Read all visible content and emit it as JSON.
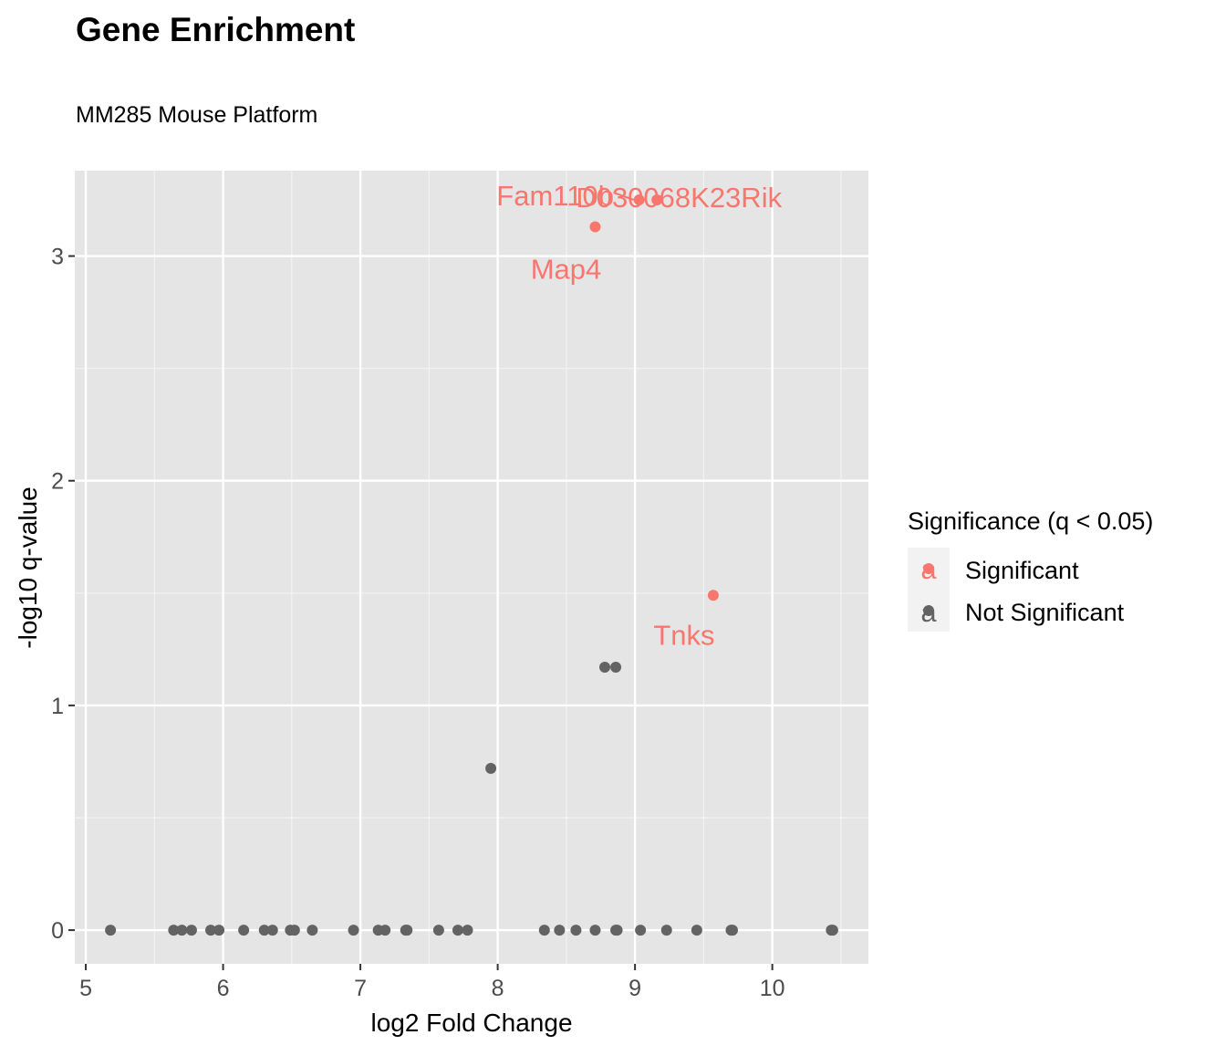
{
  "chart_data": {
    "type": "scatter",
    "title": "Gene Enrichment",
    "subtitle": "MM285 Mouse Platform",
    "xlabel": "log2 Fold Change",
    "ylabel": "-log10 q-value",
    "xlim": [
      4.92,
      10.7
    ],
    "ylim": [
      -0.15,
      3.38
    ],
    "xticks": [
      5,
      6,
      7,
      8,
      9,
      10
    ],
    "yticks": [
      0,
      1,
      2,
      3
    ],
    "grid": true,
    "legend": {
      "title": "Significance (q < 0.05)",
      "position": "right",
      "entries": [
        {
          "label": "Significant",
          "color": "#f8766d",
          "key_glyph": "a"
        },
        {
          "label": "Not Significant",
          "color": "#636363",
          "key_glyph": "a"
        }
      ]
    },
    "colors": {
      "panel_background": "#e5e5e5",
      "grid_major": "#ffffff",
      "grid_minor": "#f2f2f2",
      "significant": "#f8766d",
      "not_significant": "#636363"
    },
    "series": [
      {
        "name": "Significant",
        "points": [
          {
            "x": 9.03,
            "y": 3.25,
            "label": ""
          },
          {
            "x": 9.16,
            "y": 3.25,
            "label": "D030068K23Rik"
          },
          {
            "x": 8.71,
            "y": 3.13,
            "label": "Map4"
          },
          {
            "x": 9.57,
            "y": 1.49,
            "label": "Tnks"
          }
        ]
      },
      {
        "name": "Not Significant",
        "points": [
          {
            "x": 8.78,
            "y": 1.17
          },
          {
            "x": 8.86,
            "y": 1.17
          },
          {
            "x": 7.95,
            "y": 0.72
          },
          {
            "x": 5.18,
            "y": 0
          },
          {
            "x": 5.64,
            "y": 0
          },
          {
            "x": 5.7,
            "y": 0
          },
          {
            "x": 5.77,
            "y": 0
          },
          {
            "x": 5.91,
            "y": 0
          },
          {
            "x": 5.97,
            "y": 0
          },
          {
            "x": 6.15,
            "y": 0
          },
          {
            "x": 6.3,
            "y": 0
          },
          {
            "x": 6.36,
            "y": 0
          },
          {
            "x": 6.49,
            "y": 0
          },
          {
            "x": 6.52,
            "y": 0
          },
          {
            "x": 6.65,
            "y": 0
          },
          {
            "x": 6.95,
            "y": 0
          },
          {
            "x": 7.13,
            "y": 0
          },
          {
            "x": 7.18,
            "y": 0
          },
          {
            "x": 7.33,
            "y": 0
          },
          {
            "x": 7.34,
            "y": 0
          },
          {
            "x": 7.57,
            "y": 0
          },
          {
            "x": 7.71,
            "y": 0
          },
          {
            "x": 7.78,
            "y": 0
          },
          {
            "x": 8.34,
            "y": 0
          },
          {
            "x": 8.45,
            "y": 0
          },
          {
            "x": 8.57,
            "y": 0
          },
          {
            "x": 8.71,
            "y": 0
          },
          {
            "x": 8.86,
            "y": 0
          },
          {
            "x": 8.87,
            "y": 0
          },
          {
            "x": 9.04,
            "y": 0
          },
          {
            "x": 9.23,
            "y": 0
          },
          {
            "x": 9.45,
            "y": 0
          },
          {
            "x": 9.7,
            "y": 0
          },
          {
            "x": 9.71,
            "y": 0
          },
          {
            "x": 10.43,
            "y": 0
          },
          {
            "x": 10.44,
            "y": 0
          }
        ]
      }
    ],
    "annotations": [
      {
        "text": "Fam110b",
        "point": {
          "x": 9.03,
          "y": 3.25
        },
        "leader_line": true
      },
      {
        "text": "D030068K23Rik",
        "point": {
          "x": 9.16,
          "y": 3.25
        },
        "leader_line": false
      },
      {
        "text": "Map4",
        "point": {
          "x": 8.71,
          "y": 3.13
        },
        "leader_line": false
      },
      {
        "text": "Tnks",
        "point": {
          "x": 9.57,
          "y": 1.49
        },
        "leader_line": false
      }
    ]
  }
}
